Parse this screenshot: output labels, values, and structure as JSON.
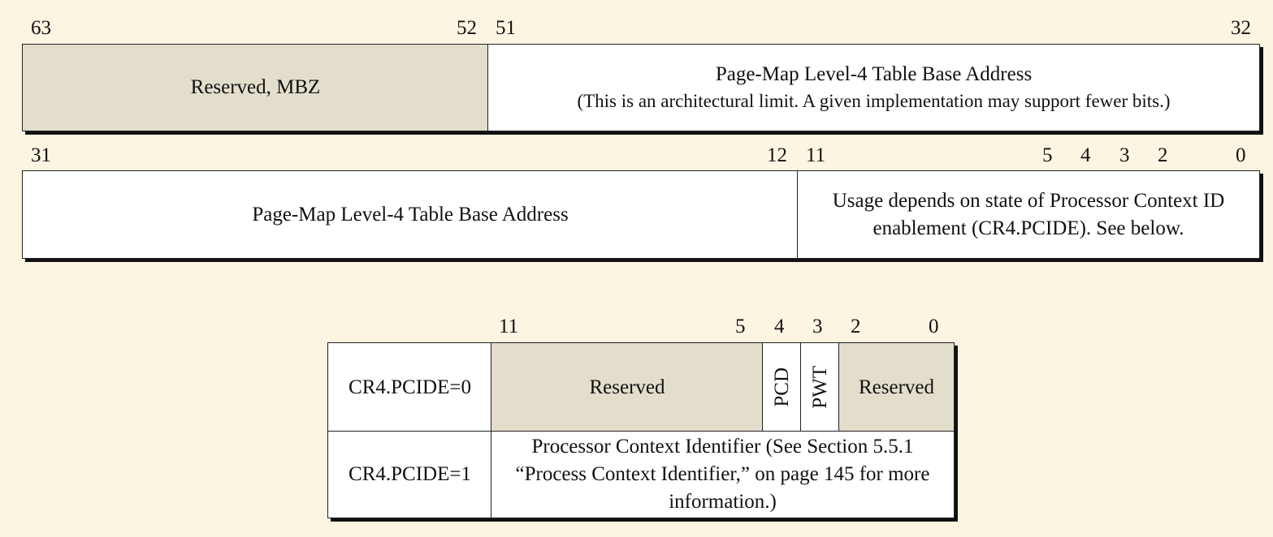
{
  "row1": {
    "bits": {
      "b63": "63",
      "b52": "52",
      "b51": "51",
      "b32": "32"
    },
    "reserved_label": "Reserved, MBZ",
    "pml4_title": "Page-Map Level-4 Table Base Address",
    "pml4_note": "(This is an architectural limit. A given implementation may support fewer bits.)"
  },
  "row2": {
    "bits": {
      "b31": "31",
      "b12": "12",
      "b11": "11",
      "b5": "5",
      "b4": "4",
      "b3": "3",
      "b2": "2",
      "b0": "0"
    },
    "pml4_label": "Page-Map Level-4 Table Base Address",
    "usage_line1": "Usage depends on state of Processor Context ID",
    "usage_line2": "enablement (CR4.PCIDE). See below."
  },
  "detail": {
    "bits": {
      "b11": "11",
      "b5": "5",
      "b4": "4",
      "b3": "3",
      "b2": "2",
      "b0": "0"
    },
    "pcide0_label": "CR4.PCIDE=0",
    "reserved_high": "Reserved",
    "pcd": "PCD",
    "pwt": "PWT",
    "reserved_low": "Reserved",
    "pcide1_label": "CR4.PCIDE=1",
    "pcid_line1": "Processor Context Identifier (See Section 5.5.1",
    "pcid_line2": "“Process Context Identifier,” on page 145 for more",
    "pcid_line3": "information.)"
  }
}
